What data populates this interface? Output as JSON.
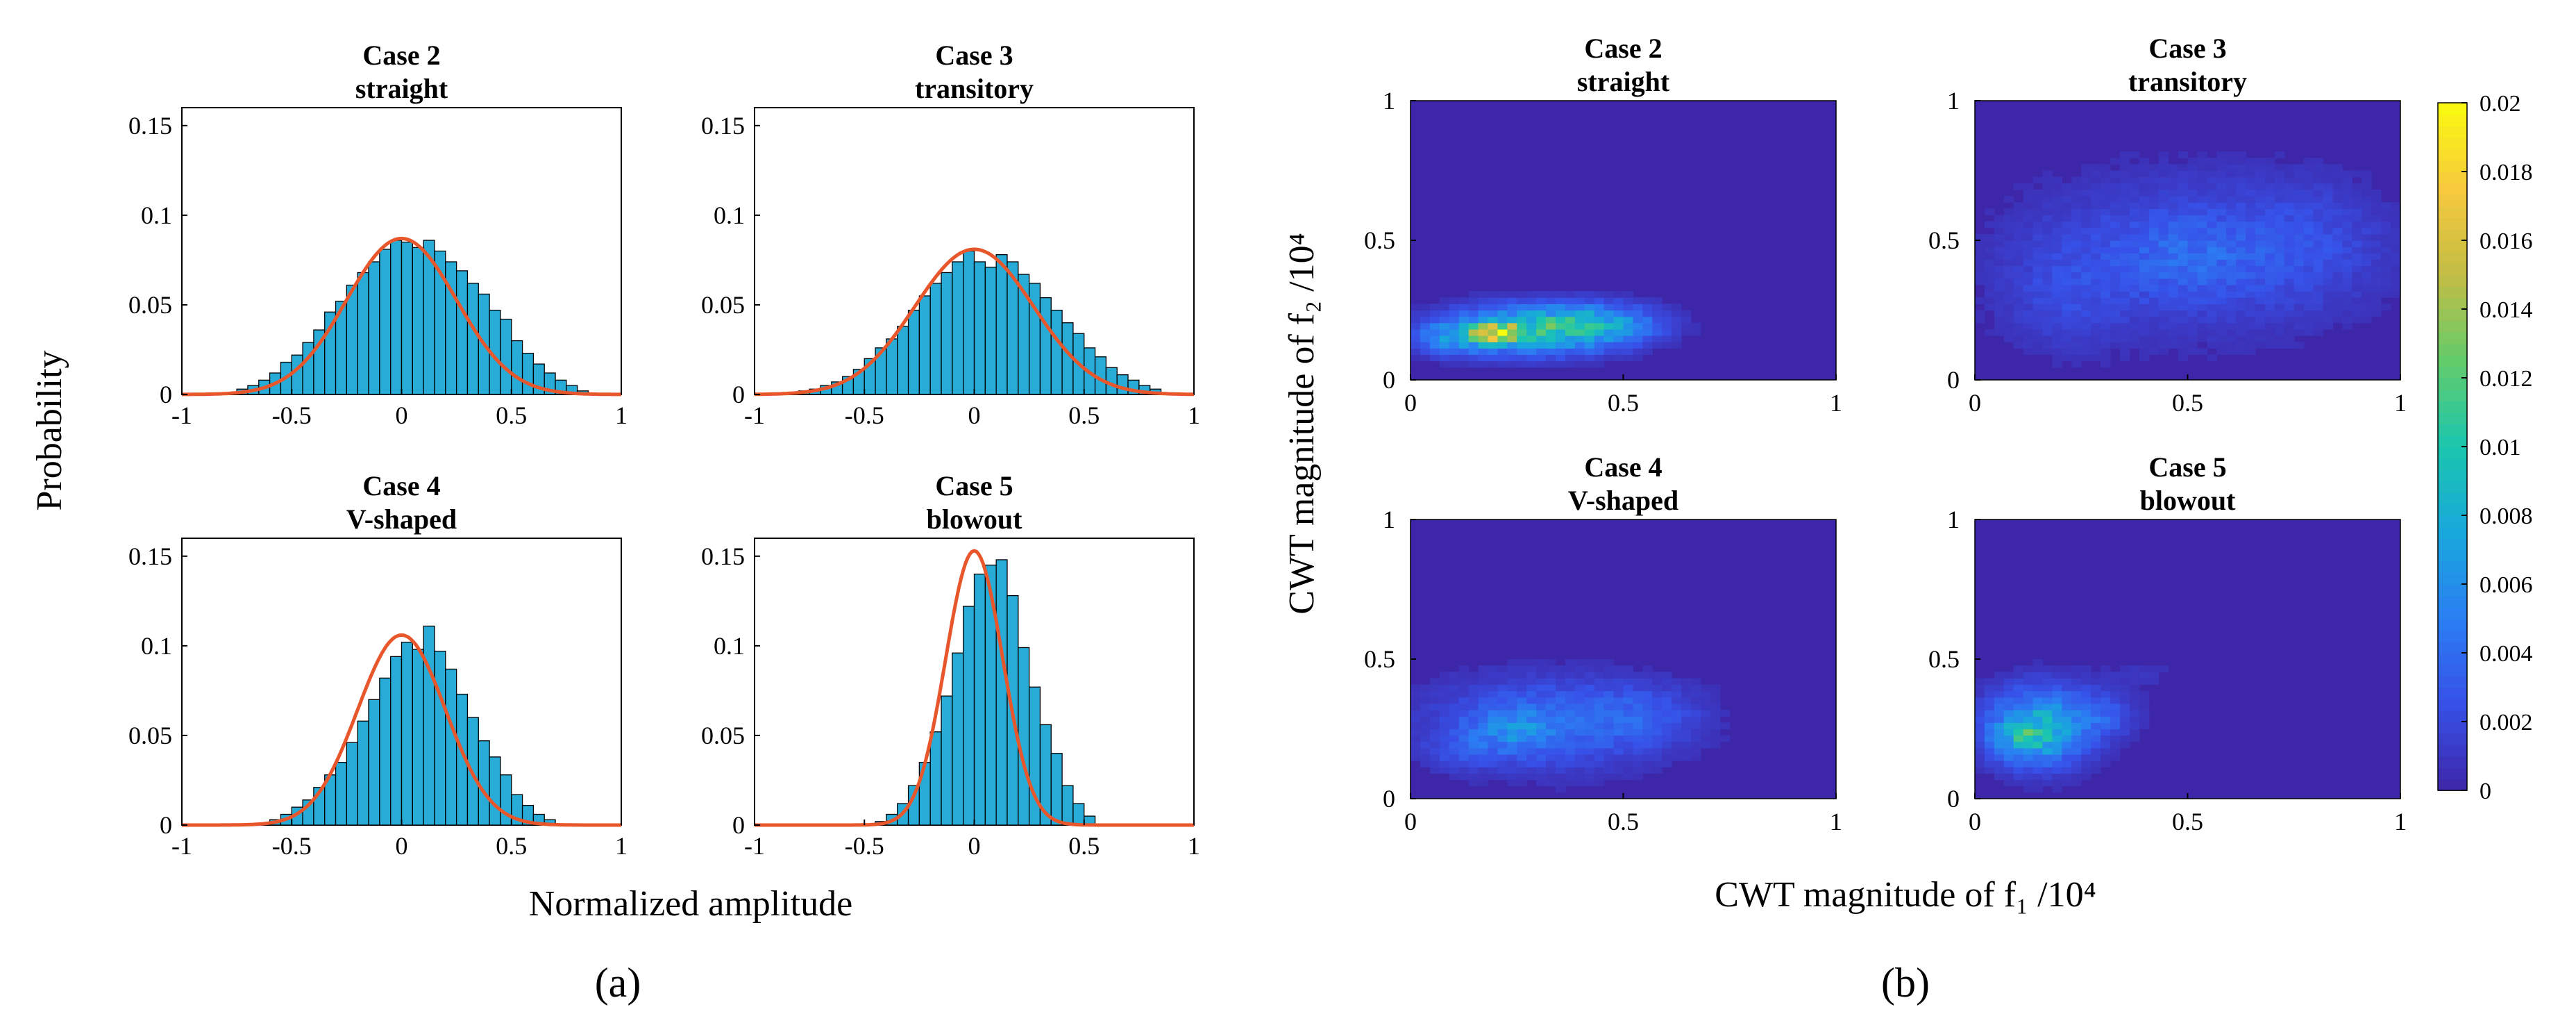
{
  "panel_labels": {
    "a": "(a)",
    "b": "(b)"
  },
  "colors": {
    "bar_fill": "#29abd8",
    "bar_stroke": "#000000",
    "fit_line": "#e8562b",
    "cmap": [
      "#3e26a8",
      "#3751e8",
      "#2b7ef3",
      "#18a8dc",
      "#1bc6ae",
      "#62cc6b",
      "#c3bd44",
      "#f7c93d",
      "#f9fb0e"
    ]
  },
  "shared_labels": {
    "a_ylabel": "Probability",
    "a_xlabel": "Normalized amplitude",
    "b_ylabel": "CWT magnitude of f₂ /10⁴",
    "b_xlabel": "CWT magnitude of f₁ /10⁴"
  },
  "chart_data": [
    {
      "type": "bar",
      "case": "Case 2",
      "subtitle": "straight",
      "xlim": [
        -1,
        1
      ],
      "ylim": [
        0,
        0.16
      ],
      "xticks": [
        -1,
        -0.5,
        0,
        0.5,
        1
      ],
      "xtick_labels": [
        "-1",
        "-0.5",
        "0",
        "0.5",
        "1"
      ],
      "yticks": [
        0,
        0.05,
        0.1,
        0.15
      ],
      "ytick_labels": [
        "0",
        "0.05",
        "0.1",
        "0.15"
      ],
      "bin_start": -0.8,
      "bin_width": 0.05,
      "values": [
        0.001,
        0.003,
        0.005,
        0.008,
        0.012,
        0.018,
        0.022,
        0.029,
        0.036,
        0.046,
        0.052,
        0.061,
        0.068,
        0.074,
        0.081,
        0.086,
        0.085,
        0.082,
        0.086,
        0.08,
        0.074,
        0.069,
        0.062,
        0.056,
        0.047,
        0.042,
        0.03,
        0.023,
        0.017,
        0.012,
        0.008,
        0.005,
        0.002
      ],
      "fit": {
        "mu": 0.0,
        "sigma": 0.25,
        "peak": 0.087
      }
    },
    {
      "type": "bar",
      "case": "Case 3",
      "subtitle": "transitory",
      "xlim": [
        -1,
        1
      ],
      "ylim": [
        0,
        0.16
      ],
      "xticks": [
        -1,
        -0.5,
        0,
        0.5,
        1
      ],
      "xtick_labels": [
        "-1",
        "-0.5",
        "0",
        "0.5",
        "1"
      ],
      "yticks": [
        0,
        0.05,
        0.1,
        0.15
      ],
      "ytick_labels": [
        "0",
        "0.05",
        "0.1",
        "0.15"
      ],
      "bin_start": -0.8,
      "bin_width": 0.05,
      "values": [
        0.002,
        0.003,
        0.005,
        0.007,
        0.01,
        0.014,
        0.02,
        0.026,
        0.031,
        0.038,
        0.047,
        0.055,
        0.062,
        0.068,
        0.074,
        0.08,
        0.074,
        0.071,
        0.078,
        0.074,
        0.067,
        0.062,
        0.054,
        0.047,
        0.04,
        0.034,
        0.026,
        0.021,
        0.015,
        0.011,
        0.008,
        0.005,
        0.003
      ],
      "fit": {
        "mu": 0.0,
        "sigma": 0.27,
        "peak": 0.081
      }
    },
    {
      "type": "bar",
      "case": "Case 4",
      "subtitle": "V-shaped",
      "xlim": [
        -1,
        1
      ],
      "ylim": [
        0,
        0.16
      ],
      "xticks": [
        -1,
        -0.5,
        0,
        0.5,
        1
      ],
      "xtick_labels": [
        "-1",
        "-0.5",
        "0",
        "0.5",
        "1"
      ],
      "yticks": [
        0,
        0.05,
        0.1,
        0.15
      ],
      "ytick_labels": [
        "0",
        "0.05",
        "0.1",
        "0.15"
      ],
      "bin_start": -0.65,
      "bin_width": 0.05,
      "values": [
        0.001,
        0.003,
        0.006,
        0.01,
        0.014,
        0.021,
        0.028,
        0.035,
        0.046,
        0.058,
        0.07,
        0.082,
        0.094,
        0.102,
        0.098,
        0.111,
        0.097,
        0.087,
        0.073,
        0.06,
        0.047,
        0.038,
        0.028,
        0.017,
        0.011,
        0.006,
        0.003
      ],
      "fit": {
        "mu": 0.0,
        "sigma": 0.2,
        "peak": 0.106
      }
    },
    {
      "type": "bar",
      "case": "Case 5",
      "subtitle": "blowout",
      "xlim": [
        -1,
        1
      ],
      "ylim": [
        0,
        0.16
      ],
      "xticks": [
        -1,
        -0.5,
        0,
        0.5,
        1
      ],
      "xtick_labels": [
        "-1",
        "-0.5",
        "0",
        "0.5",
        "1"
      ],
      "yticks": [
        0,
        0.05,
        0.1,
        0.15
      ],
      "ytick_labels": [
        "0",
        "0.05",
        "0.1",
        "0.15"
      ],
      "bin_start": -0.45,
      "bin_width": 0.05,
      "values": [
        0.002,
        0.006,
        0.012,
        0.022,
        0.035,
        0.052,
        0.072,
        0.096,
        0.122,
        0.14,
        0.145,
        0.148,
        0.128,
        0.099,
        0.077,
        0.056,
        0.04,
        0.022,
        0.012,
        0.005
      ],
      "fit": {
        "mu": 0.0,
        "sigma": 0.13,
        "peak": 0.153
      }
    },
    {
      "type": "heatmap",
      "case": "Case 2",
      "subtitle": "straight",
      "xlim": [
        0,
        1
      ],
      "ylim": [
        0,
        1
      ],
      "clim": [
        0,
        0.02
      ],
      "xticks": [
        0,
        0.5,
        1
      ],
      "xtick_labels": [
        "0",
        "0.5",
        "1"
      ],
      "yticks": [
        0,
        0.5,
        1
      ],
      "ytick_labels": [
        "0",
        "0.5",
        "1"
      ],
      "blobs": [
        {
          "x": 0.28,
          "y": 0.18,
          "sx": 0.14,
          "sy": 0.06,
          "a": 0.009
        },
        {
          "x": 0.2,
          "y": 0.17,
          "sx": 0.04,
          "sy": 0.025,
          "a": 0.01
        },
        {
          "x": 0.45,
          "y": 0.2,
          "sx": 0.1,
          "sy": 0.05,
          "a": 0.005
        },
        {
          "x": 0.1,
          "y": 0.15,
          "sx": 0.06,
          "sy": 0.04,
          "a": 0.004
        }
      ]
    },
    {
      "type": "heatmap",
      "case": "Case 3",
      "subtitle": "transitory",
      "xlim": [
        0,
        1
      ],
      "ylim": [
        0,
        1
      ],
      "clim": [
        0,
        0.02
      ],
      "xticks": [
        0,
        0.5,
        1
      ],
      "xtick_labels": [
        "0",
        "0.5",
        "1"
      ],
      "yticks": [
        0,
        0.5,
        1
      ],
      "ytick_labels": [
        "0",
        "0.5",
        "1"
      ],
      "blobs": [
        {
          "x": 0.5,
          "y": 0.45,
          "sx": 0.3,
          "sy": 0.22,
          "a": 0.0022
        },
        {
          "x": 0.5,
          "y": 0.45,
          "sx": 0.12,
          "sy": 0.1,
          "a": 0.0018
        },
        {
          "x": 0.2,
          "y": 0.3,
          "sx": 0.1,
          "sy": 0.15,
          "a": 0.0012
        },
        {
          "x": 0.8,
          "y": 0.5,
          "sx": 0.12,
          "sy": 0.15,
          "a": 0.0012
        }
      ]
    },
    {
      "type": "heatmap",
      "case": "Case 4",
      "subtitle": "V-shaped",
      "xlim": [
        0,
        1
      ],
      "ylim": [
        0,
        1
      ],
      "clim": [
        0,
        0.02
      ],
      "xticks": [
        0,
        0.5,
        1
      ],
      "xtick_labels": [
        "0",
        "0.5",
        "1"
      ],
      "yticks": [
        0,
        0.5,
        1
      ],
      "ytick_labels": [
        "0",
        "0.5",
        "1"
      ],
      "blobs": [
        {
          "x": 0.32,
          "y": 0.27,
          "sx": 0.2,
          "sy": 0.12,
          "a": 0.0035
        },
        {
          "x": 0.25,
          "y": 0.25,
          "sx": 0.07,
          "sy": 0.06,
          "a": 0.003
        },
        {
          "x": 0.55,
          "y": 0.3,
          "sx": 0.1,
          "sy": 0.08,
          "a": 0.0018
        },
        {
          "x": 0.12,
          "y": 0.18,
          "sx": 0.06,
          "sy": 0.05,
          "a": 0.0015
        }
      ]
    },
    {
      "type": "heatmap",
      "case": "Case 5",
      "subtitle": "blowout",
      "xlim": [
        0,
        1
      ],
      "ylim": [
        0,
        1
      ],
      "clim": [
        0,
        0.02
      ],
      "xticks": [
        0,
        0.5,
        1
      ],
      "xtick_labels": [
        "0",
        "0.5",
        "1"
      ],
      "yticks": [
        0,
        0.5,
        1
      ],
      "ytick_labels": [
        "0",
        "0.5",
        "1"
      ],
      "blobs": [
        {
          "x": 0.15,
          "y": 0.26,
          "sx": 0.09,
          "sy": 0.1,
          "a": 0.0072
        },
        {
          "x": 0.12,
          "y": 0.22,
          "sx": 0.05,
          "sy": 0.05,
          "a": 0.004
        },
        {
          "x": 0.3,
          "y": 0.3,
          "sx": 0.06,
          "sy": 0.06,
          "a": 0.0022
        },
        {
          "x": 0.4,
          "y": 0.45,
          "sx": 0.08,
          "sy": 0.05,
          "a": 0.0008
        }
      ]
    }
  ],
  "colorbar": {
    "ticks": [
      0,
      0.002,
      0.004,
      0.006,
      0.008,
      0.01,
      0.012,
      0.014,
      0.016,
      0.018,
      0.02
    ],
    "tick_labels": [
      "0",
      "0.002",
      "0.004",
      "0.006",
      "0.008",
      "0.01",
      "0.012",
      "0.014",
      "0.016",
      "0.018",
      "0.02"
    ]
  }
}
